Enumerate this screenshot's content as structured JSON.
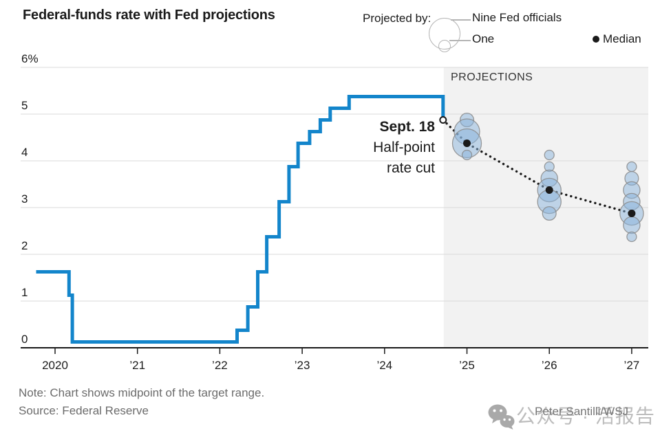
{
  "header": {
    "title": "Federal-funds rate with Fed projections",
    "legend": {
      "projected_by": "Projected by:",
      "nine_label": "Nine Fed officials",
      "one_label": "One",
      "median_label": "Median"
    }
  },
  "chart": {
    "projections_label": "PROJECTIONS",
    "annotation": {
      "line1": "Sept. 18",
      "line2": "Half-point",
      "line3": "rate cut"
    }
  },
  "footer": {
    "note": "Note: Chart shows midpoint of the target range.",
    "source": "Source: Federal Reserve",
    "credit": "Peter Santilli/WSJ",
    "watermark": "公众号 · 活报告"
  },
  "chart_data": {
    "type": "line",
    "subtype": "step-line with dot-plot projections",
    "title": "Federal-funds rate with Fed projections",
    "ylabel": "%",
    "ylim": [
      0,
      6
    ],
    "yticks": [
      {
        "value": 6,
        "label": "6%"
      },
      {
        "value": 5,
        "label": "5"
      },
      {
        "value": 4,
        "label": "4"
      },
      {
        "value": 3,
        "label": "3"
      },
      {
        "value": 2,
        "label": "2"
      },
      {
        "value": 1,
        "label": "1"
      },
      {
        "value": 0,
        "label": "0"
      }
    ],
    "xlim": [
      2019.6,
      2027.2
    ],
    "xticks": [
      {
        "value": 2020,
        "label": "2020"
      },
      {
        "value": 2021,
        "label": "’21"
      },
      {
        "value": 2022,
        "label": "’22"
      },
      {
        "value": 2023,
        "label": "’23"
      },
      {
        "value": 2024,
        "label": "’24"
      },
      {
        "value": 2025,
        "label": "’25"
      },
      {
        "value": 2026,
        "label": "’26"
      },
      {
        "value": 2027,
        "label": "’27"
      }
    ],
    "grid": true,
    "projection_band_start": 2024.71,
    "rate_steps": [
      [
        2019.77,
        1.625
      ],
      [
        2020.17,
        1.125
      ],
      [
        2020.21,
        0.125
      ],
      [
        2022.21,
        0.375
      ],
      [
        2022.34,
        0.875
      ],
      [
        2022.46,
        1.625
      ],
      [
        2022.57,
        2.375
      ],
      [
        2022.72,
        3.125
      ],
      [
        2022.84,
        3.875
      ],
      [
        2022.95,
        4.375
      ],
      [
        2023.09,
        4.625
      ],
      [
        2023.22,
        4.875
      ],
      [
        2023.34,
        5.125
      ],
      [
        2023.57,
        5.375
      ],
      [
        2024.71,
        4.875
      ]
    ],
    "last_point": {
      "x": 2024.71,
      "rate": 4.875,
      "marker": "open-circle",
      "annotation": "Sept. 18 Half-point rate cut"
    },
    "median_path": [
      [
        2024.71,
        4.875
      ],
      [
        2025,
        4.375
      ],
      [
        2026,
        3.375
      ],
      [
        2027,
        2.875
      ]
    ],
    "projection_clusters": [
      {
        "x": 2025,
        "median": 4.375,
        "dots": [
          {
            "rate": 4.875,
            "officials": 2
          },
          {
            "rate": 4.625,
            "officials": 7
          },
          {
            "rate": 4.375,
            "officials": 9
          },
          {
            "rate": 4.125,
            "officials": 1
          }
        ]
      },
      {
        "x": 2026,
        "median": 3.375,
        "dots": [
          {
            "rate": 4.125,
            "officials": 1
          },
          {
            "rate": 3.875,
            "officials": 1
          },
          {
            "rate": 3.625,
            "officials": 3
          },
          {
            "rate": 3.375,
            "officials": 6
          },
          {
            "rate": 3.125,
            "officials": 6
          },
          {
            "rate": 2.875,
            "officials": 2
          }
        ]
      },
      {
        "x": 2027,
        "median": 2.875,
        "dots": [
          {
            "rate": 3.875,
            "officials": 1
          },
          {
            "rate": 3.625,
            "officials": 2
          },
          {
            "rate": 3.375,
            "officials": 3
          },
          {
            "rate": 3.125,
            "officials": 3
          },
          {
            "rate": 2.875,
            "officials": 6
          },
          {
            "rate": 2.625,
            "officials": 3
          },
          {
            "rate": 2.375,
            "officials": 1
          }
        ]
      }
    ],
    "colors": {
      "line": "#1385cb",
      "bubble_fill": "#8ab4dc",
      "bubble_stroke": "#8a8a8a",
      "band": "#f2f2f2",
      "grid": "#dadada",
      "axis": "#1a1a1a",
      "median": "#1a1a1a",
      "label": "#1a1a1a"
    }
  }
}
